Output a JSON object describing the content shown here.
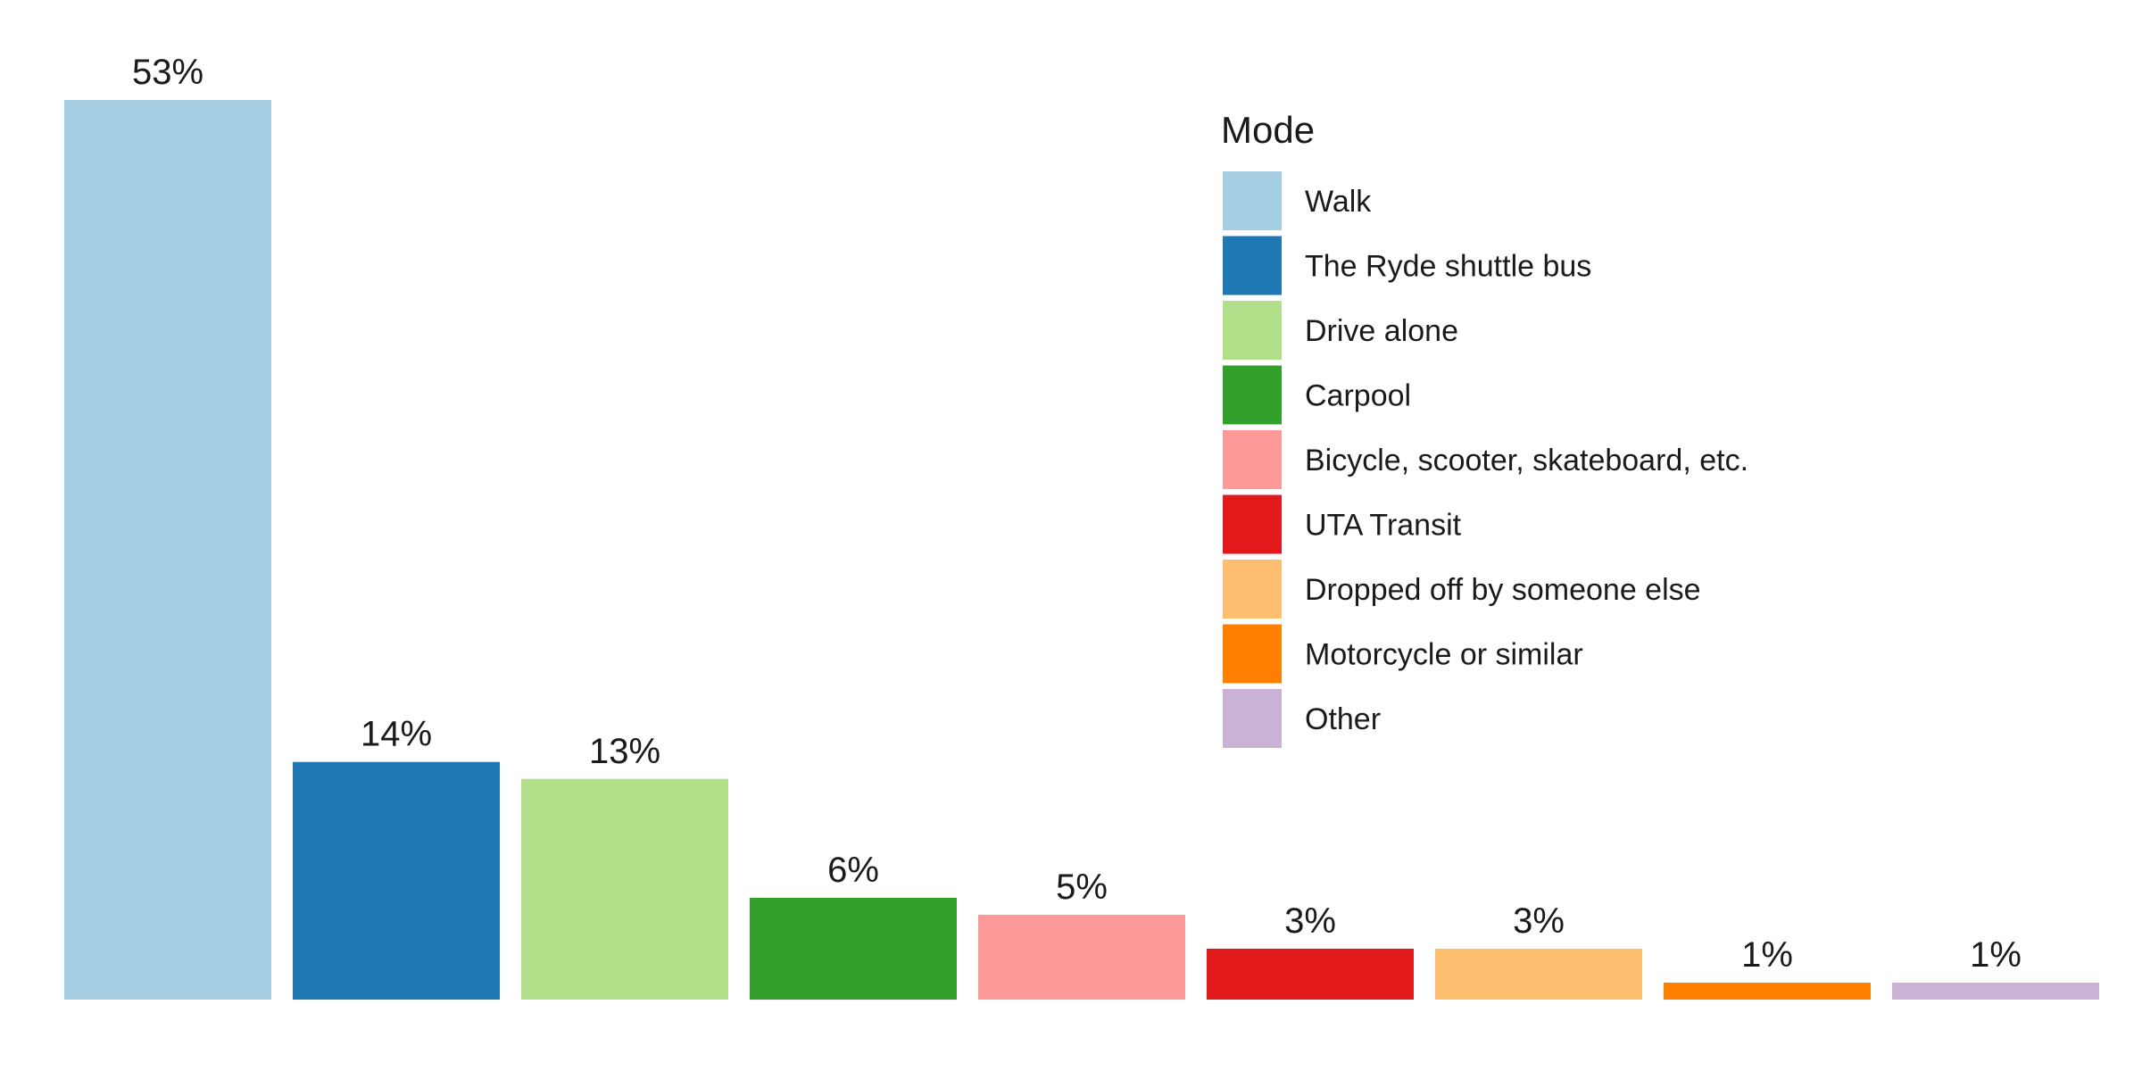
{
  "chart_data": {
    "type": "bar",
    "categories": [
      "Walk",
      "The Ryde shuttle bus",
      "Drive alone",
      "Carpool",
      "Bicycle, scooter, skateboard, etc.",
      "UTA Transit",
      "Dropped off by someone else",
      "Motorcycle or similar",
      "Other"
    ],
    "values": [
      53,
      14,
      13,
      6,
      5,
      3,
      3,
      1,
      1
    ],
    "labels": [
      "53%",
      "14%",
      "13%",
      "6%",
      "5%",
      "3%",
      "3%",
      "1%",
      "1%"
    ],
    "colors": [
      "#a6cee3",
      "#1f78b4",
      "#b2df8a",
      "#33a02c",
      "#fb9a99",
      "#e31a1c",
      "#fdbf6f",
      "#ff7f00",
      "#cab2d6"
    ],
    "ylim": [
      0,
      53
    ],
    "grid": false,
    "axes_visible": false,
    "legend": {
      "title": "Mode",
      "placement": "top-right",
      "entries": [
        "Walk",
        "The Ryde shuttle bus",
        "Drive alone",
        "Carpool",
        "Bicycle, scooter, skateboard, etc.",
        "UTA Transit",
        "Dropped off by someone else",
        "Motorcycle or similar",
        "Other"
      ]
    }
  }
}
